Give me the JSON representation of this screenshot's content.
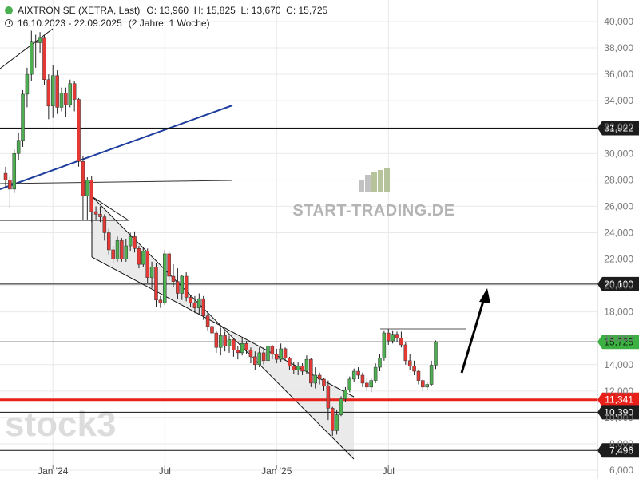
{
  "header": {
    "name_line": "AIXTRON SE (XETRA, Last)",
    "ohlc": "O: 13,960  H: 15,825  L: 13,670  C: 15,725",
    "range": "16.10.2023 - 22.09.2025",
    "period": "(2 Jahre, 1 Woche)"
  },
  "watermarks": {
    "brand": "START-TRADING.DE",
    "stock3": "stock3"
  },
  "colors": {
    "up": "#4caf50",
    "down": "#e53935",
    "trend_blue": "#1f3f9f",
    "support_red": "#e8201a",
    "last_price_green": "#3cb043",
    "channel_fill": "#e6e6e6"
  },
  "chart_data": {
    "type": "candlestick",
    "title": "AIXTRON SE (XETRA, Last)",
    "ylim": [
      6000,
      40500
    ],
    "y_ticks": [
      40000,
      38000,
      36000,
      34000,
      32000,
      30000,
      28000,
      26000,
      24000,
      22000,
      20000,
      18000,
      16000,
      14000,
      12000,
      10000,
      8000,
      6000
    ],
    "y_tick_labels": [
      "40,000",
      "38,000",
      "36,000",
      "34,000",
      "32,000",
      "30,000",
      "28,000",
      "26,000",
      "24,000",
      "22,000",
      "20,000",
      "18,000",
      "16,000",
      "14,000",
      "12,000",
      "10,000",
      "8,000",
      "6,000"
    ],
    "x_ticks": [
      {
        "label": "Jan '24",
        "week": 11
      },
      {
        "label": "Jul",
        "week": 37
      },
      {
        "label": "Jan '25",
        "week": 63
      },
      {
        "label": "Jul",
        "week": 89
      }
    ],
    "ohlc_weekly": [
      [
        28500,
        29000,
        27400,
        28000
      ],
      [
        28000,
        28400,
        25900,
        27300
      ],
      [
        27300,
        30300,
        27000,
        30000
      ],
      [
        30000,
        31600,
        29500,
        31000
      ],
      [
        31000,
        34800,
        30500,
        34500
      ],
      [
        34500,
        36500,
        33500,
        36000
      ],
      [
        36000,
        39300,
        35500,
        38500
      ],
      [
        38500,
        39000,
        36500,
        38400
      ],
      [
        38400,
        39200,
        37600,
        38800
      ],
      [
        38800,
        39000,
        35200,
        35600
      ],
      [
        35600,
        36000,
        32600,
        33600
      ],
      [
        33600,
        36700,
        32700,
        35900
      ],
      [
        35900,
        36300,
        33000,
        33500
      ],
      [
        33500,
        35000,
        33200,
        34600
      ],
      [
        34600,
        35000,
        32800,
        33700
      ],
      [
        33700,
        35600,
        33500,
        35300
      ],
      [
        35300,
        35500,
        33200,
        34100
      ],
      [
        34100,
        34200,
        29000,
        29400
      ],
      [
        29400,
        29800,
        25000,
        26800
      ],
      [
        26800,
        28200,
        25000,
        28000
      ],
      [
        28000,
        28300,
        24800,
        25600
      ],
      [
        25600,
        26000,
        25000,
        25400
      ],
      [
        25400,
        26000,
        24800,
        25200
      ],
      [
        25200,
        25400,
        23400,
        24000
      ],
      [
        24000,
        24300,
        22300,
        22700
      ],
      [
        22700,
        23000,
        21700,
        22000
      ],
      [
        22000,
        23700,
        21800,
        23400
      ],
      [
        23400,
        23600,
        21800,
        22000
      ],
      [
        22000,
        23500,
        21800,
        23000
      ],
      [
        23000,
        24000,
        22600,
        23700
      ],
      [
        23700,
        24100,
        22500,
        22800
      ],
      [
        22800,
        23000,
        21300,
        21600
      ],
      [
        21600,
        22900,
        21400,
        22600
      ],
      [
        22600,
        22800,
        20200,
        20600
      ],
      [
        20600,
        21800,
        19800,
        21400
      ],
      [
        21400,
        21700,
        18400,
        18900
      ],
      [
        18900,
        19200,
        18300,
        18700
      ],
      [
        18700,
        22700,
        18500,
        22400
      ],
      [
        22400,
        22600,
        20400,
        20700
      ],
      [
        20700,
        21600,
        19900,
        20300
      ],
      [
        20300,
        21300,
        19000,
        19400
      ],
      [
        19400,
        20800,
        18900,
        20700
      ],
      [
        20700,
        21000,
        18800,
        19100
      ],
      [
        19100,
        19300,
        18400,
        18700
      ],
      [
        18700,
        19200,
        17900,
        18300
      ],
      [
        18300,
        19400,
        17800,
        19000
      ],
      [
        19000,
        19200,
        17400,
        17700
      ],
      [
        17700,
        18100,
        16600,
        16900
      ],
      [
        16900,
        17000,
        16100,
        16400
      ],
      [
        16400,
        16600,
        14900,
        15300
      ],
      [
        15300,
        16800,
        14700,
        16200
      ],
      [
        16200,
        16500,
        15000,
        15400
      ],
      [
        15400,
        16200,
        14900,
        15900
      ],
      [
        15900,
        16000,
        14600,
        15100
      ],
      [
        15100,
        15400,
        14400,
        14900
      ],
      [
        14900,
        16000,
        14700,
        15600
      ],
      [
        15600,
        15800,
        14800,
        15100
      ],
      [
        15100,
        15300,
        14100,
        14600
      ],
      [
        14600,
        15000,
        13600,
        14000
      ],
      [
        14000,
        15300,
        13800,
        14900
      ],
      [
        14900,
        15300,
        14000,
        14300
      ],
      [
        14300,
        15600,
        14100,
        15400
      ],
      [
        15400,
        15500,
        14400,
        14800
      ],
      [
        14800,
        15200,
        14100,
        14400
      ],
      [
        14400,
        15600,
        14200,
        15200
      ],
      [
        15200,
        15300,
        14300,
        14500
      ],
      [
        14500,
        14600,
        13600,
        13900
      ],
      [
        13900,
        14200,
        13300,
        13600
      ],
      [
        13600,
        14200,
        13200,
        13900
      ],
      [
        13900,
        14100,
        13200,
        13500
      ],
      [
        13500,
        14700,
        13300,
        14400
      ],
      [
        14400,
        14500,
        12300,
        12600
      ],
      [
        12600,
        13800,
        12200,
        13200
      ],
      [
        13200,
        13400,
        12500,
        12900
      ],
      [
        12900,
        13000,
        12000,
        12400
      ],
      [
        12400,
        12800,
        9800,
        10700
      ],
      [
        10700,
        10800,
        8600,
        9000
      ],
      [
        9000,
        10600,
        8700,
        10200
      ],
      [
        10200,
        11600,
        10100,
        11400
      ],
      [
        11400,
        12300,
        11200,
        12100
      ],
      [
        12100,
        13100,
        11900,
        12900
      ],
      [
        12900,
        13700,
        12700,
        13500
      ],
      [
        13500,
        13800,
        12900,
        13200
      ],
      [
        13200,
        13400,
        12300,
        12600
      ],
      [
        12600,
        13000,
        12000,
        12300
      ],
      [
        12300,
        13000,
        11900,
        12800
      ],
      [
        12800,
        14100,
        12600,
        13800
      ],
      [
        13800,
        14800,
        13500,
        14500
      ],
      [
        14500,
        16600,
        14300,
        16400
      ],
      [
        16400,
        16700,
        15500,
        15800
      ],
      [
        15800,
        16600,
        15600,
        16300
      ],
      [
        16300,
        16500,
        15700,
        16000
      ],
      [
        16000,
        16500,
        15300,
        15500
      ],
      [
        15500,
        15700,
        14000,
        14300
      ],
      [
        14300,
        14800,
        13600,
        13900
      ],
      [
        13900,
        14300,
        13200,
        13500
      ],
      [
        13500,
        13600,
        12500,
        12800
      ],
      [
        12800,
        12900,
        12000,
        12300
      ],
      [
        12300,
        12700,
        12100,
        12500
      ],
      [
        12500,
        14300,
        12400,
        13960
      ],
      [
        13960,
        15825,
        13670,
        15725
      ]
    ],
    "levels": [
      {
        "value": 31922,
        "label": "31,922",
        "style": "black",
        "badge": "dark"
      },
      {
        "value": 20100,
        "label": "20,100",
        "style": "black",
        "badge": "dark"
      },
      {
        "value": 15725,
        "label": "15,725",
        "style": "black",
        "badge": "green"
      },
      {
        "value": 11341,
        "label": "11,341",
        "style": "red",
        "badge": "red"
      },
      {
        "value": 10390,
        "label": "10,390",
        "style": "black",
        "badge": "dark"
      },
      {
        "value": 7496,
        "label": "7,496",
        "style": "black",
        "badge": "dark"
      }
    ]
  }
}
